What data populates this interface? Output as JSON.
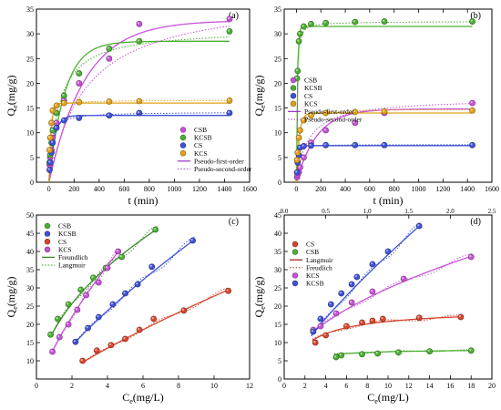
{
  "figure": {
    "background": "#ffffff"
  },
  "chart_data": [
    {
      "panel": "(a)",
      "type": "scatter",
      "xlabel": "t (min)",
      "ylabel": "Qe(mg/g)",
      "xlim": [
        -100,
        1600
      ],
      "ylim": [
        0,
        35
      ],
      "xticks": [
        0,
        200,
        400,
        600,
        800,
        1000,
        1200,
        1400,
        1600
      ],
      "yticks": [
        0,
        5,
        10,
        15,
        20,
        25,
        30,
        35
      ],
      "legend_position": "bottom-right",
      "legend": [
        {
          "label": "CSB",
          "kind": "marker",
          "color": "#c653d6"
        },
        {
          "label": "KCSB",
          "kind": "marker",
          "color": "#4caf33"
        },
        {
          "label": "CS",
          "kind": "marker",
          "color": "#3f51d6"
        },
        {
          "label": "KCS",
          "kind": "marker",
          "color": "#e0a21a"
        },
        {
          "label": "Pseudo-first-order",
          "kind": "solid",
          "color": "#9b3fc4"
        },
        {
          "label": "Pseudo-second-order",
          "kind": "dotted",
          "color": "#9b3fc4"
        }
      ],
      "series": [
        {
          "name": "CSB",
          "color": "#c653d6",
          "x": [
            5,
            10,
            20,
            30,
            60,
            120,
            240,
            480,
            720,
            1440
          ],
          "y": [
            3.5,
            5,
            6.5,
            9,
            12,
            16.5,
            20,
            25,
            32,
            33
          ]
        },
        {
          "name": "KCSB",
          "color": "#4caf33",
          "x": [
            5,
            10,
            20,
            30,
            60,
            120,
            240,
            480,
            720,
            1440
          ],
          "y": [
            4,
            5.5,
            8,
            10.5,
            14,
            17.5,
            22,
            27,
            28.5,
            30.5
          ]
        },
        {
          "name": "CS",
          "color": "#3f51d6",
          "x": [
            5,
            10,
            20,
            30,
            60,
            120,
            240,
            480,
            720,
            1440
          ],
          "y": [
            2.5,
            4,
            6,
            8,
            11,
            12.5,
            13,
            13.5,
            14,
            14
          ]
        },
        {
          "name": "KCS",
          "color": "#e0a21a",
          "x": [
            5,
            10,
            20,
            30,
            60,
            120,
            240,
            480,
            720,
            1440
          ],
          "y": [
            6.5,
            9,
            12,
            14.5,
            15.5,
            16,
            16.2,
            16.3,
            16.4,
            16.5
          ]
        }
      ],
      "fits": [
        {
          "color": "#c653d6",
          "model": "pfo",
          "qe": 32.7,
          "k": 0.0035
        },
        {
          "color": "#4caf33",
          "model": "pfo",
          "qe": 28.5,
          "k": 0.008
        },
        {
          "color": "#3f51d6",
          "model": "pfo",
          "qe": 13.5,
          "k": 0.025
        },
        {
          "color": "#e0a21a",
          "model": "pfo",
          "qe": 16.0,
          "k": 0.06
        },
        {
          "color": "#c653d6",
          "model": "pso",
          "qe": 38,
          "k": 9e-05
        },
        {
          "color": "#4caf33",
          "model": "pso",
          "qe": 31,
          "k": 0.0004
        },
        {
          "color": "#3f51d6",
          "model": "pso",
          "qe": 14.2,
          "k": 0.004
        },
        {
          "color": "#e0a21a",
          "model": "pso",
          "qe": 16.6,
          "k": 0.009
        }
      ]
    },
    {
      "panel": "(b)",
      "type": "scatter",
      "xlabel": "t (min)",
      "ylabel": "Qe(mg/g)",
      "xlim": [
        -100,
        1600
      ],
      "ylim": [
        0,
        35
      ],
      "xticks": [
        0,
        200,
        400,
        600,
        800,
        1000,
        1200,
        1400,
        1600
      ],
      "yticks": [
        0,
        5,
        10,
        15,
        20,
        25,
        30,
        35
      ],
      "legend_position": "center-left",
      "legend": [
        {
          "label": "CSB",
          "kind": "marker",
          "color": "#c653d6"
        },
        {
          "label": "KCSB",
          "kind": "marker",
          "color": "#4caf33"
        },
        {
          "label": "CS",
          "kind": "marker",
          "color": "#3f51d6"
        },
        {
          "label": "KCS",
          "kind": "marker",
          "color": "#e0a21a"
        },
        {
          "label": "Pseudo-first-order",
          "kind": "solid",
          "color": "#9b3fc4"
        },
        {
          "label": "Pseudo-second-order",
          "kind": "dotted",
          "color": "#9b3fc4"
        }
      ],
      "series": [
        {
          "name": "CSB",
          "color": "#c653d6",
          "x": [
            5,
            10,
            20,
            30,
            60,
            120,
            240,
            480,
            720,
            1440
          ],
          "y": [
            1,
            1.5,
            2,
            3,
            5,
            8,
            10.5,
            12,
            14,
            16
          ]
        },
        {
          "name": "KCSB",
          "color": "#4caf33",
          "x": [
            5,
            10,
            20,
            30,
            60,
            120,
            240,
            480,
            720,
            1440
          ],
          "y": [
            21,
            22.5,
            28.5,
            30,
            31.5,
            32,
            32.2,
            32.4,
            32.5,
            32.5
          ]
        },
        {
          "name": "CS",
          "color": "#3f51d6",
          "x": [
            5,
            10,
            20,
            30,
            60,
            120,
            240,
            480,
            720,
            1440
          ],
          "y": [
            2,
            4,
            5.5,
            7,
            7.3,
            7.4,
            7.5,
            7.5,
            7.5,
            7.5
          ]
        },
        {
          "name": "KCS",
          "color": "#e0a21a",
          "x": [
            5,
            10,
            20,
            30,
            60,
            120,
            240,
            480,
            720,
            1440
          ],
          "y": [
            4.5,
            6,
            9,
            10.5,
            12.5,
            13.5,
            14,
            14.2,
            14.3,
            14.5
          ]
        }
      ],
      "fits": [
        {
          "color": "#c653d6",
          "model": "pfo",
          "qe": 14.8,
          "k": 0.006
        },
        {
          "color": "#4caf33",
          "model": "pfo",
          "qe": 31.5,
          "k": 0.12
        },
        {
          "color": "#3f51d6",
          "model": "pfo",
          "qe": 7.4,
          "k": 0.08
        },
        {
          "color": "#e0a21a",
          "model": "pfo",
          "qe": 14.0,
          "k": 0.045
        },
        {
          "color": "#c653d6",
          "model": "pso",
          "qe": 17,
          "k": 0.0006
        },
        {
          "color": "#4caf33",
          "model": "pso",
          "qe": 32.5,
          "k": 0.008
        },
        {
          "color": "#3f51d6",
          "model": "pso",
          "qe": 7.6,
          "k": 0.03
        },
        {
          "color": "#e0a21a",
          "model": "pso",
          "qe": 14.8,
          "k": 0.006
        }
      ]
    },
    {
      "panel": "(c)",
      "type": "scatter",
      "xlabel": "Ce(mg/L)",
      "ylabel": "Qe(mg/g)",
      "xlim": [
        0,
        12
      ],
      "ylim": [
        5,
        50
      ],
      "xticks": [
        0,
        2,
        4,
        6,
        8,
        10,
        12
      ],
      "yticks": [
        10,
        15,
        20,
        25,
        30,
        35,
        40,
        45,
        50
      ],
      "legend_position": "top-left",
      "legend": [
        {
          "label": "CSB",
          "kind": "marker",
          "color": "#4caf33"
        },
        {
          "label": "KCSB",
          "kind": "marker",
          "color": "#3f51d6"
        },
        {
          "label": "CS",
          "kind": "marker",
          "color": "#d9442f"
        },
        {
          "label": "KCS",
          "kind": "marker",
          "color": "#c653d6"
        },
        {
          "label": "Freundlich",
          "kind": "solid",
          "color": "#3a8a2a"
        },
        {
          "label": "Langmuir",
          "kind": "dotted",
          "color": "#3a8a2a"
        }
      ],
      "series": [
        {
          "name": "CSB",
          "color": "#4caf33",
          "x": [
            0.8,
            1.2,
            1.8,
            2.5,
            3.2,
            3.9,
            4.8,
            6.7
          ],
          "y": [
            17.2,
            21.5,
            25.5,
            29.5,
            32.8,
            35.5,
            38.5,
            46
          ]
        },
        {
          "name": "KCSB",
          "color": "#3f51d6",
          "x": [
            2.2,
            2.9,
            3.5,
            4.3,
            5.0,
            5.7,
            6.5,
            8.8
          ],
          "y": [
            15.2,
            19,
            22,
            25.5,
            28.5,
            31,
            35.8,
            43
          ]
        },
        {
          "name": "CS",
          "color": "#d9442f",
          "x": [
            2.6,
            3.4,
            4.2,
            5.0,
            5.8,
            6.6,
            8.3,
            10.8
          ],
          "y": [
            10,
            12.8,
            14.3,
            16,
            18.5,
            21.5,
            23.8,
            29.2
          ]
        },
        {
          "name": "KCS",
          "color": "#c653d6",
          "x": [
            0.9,
            1.3,
            1.8,
            2.3,
            2.8,
            3.5,
            4.0,
            4.6
          ],
          "y": [
            12.5,
            16.5,
            20,
            24,
            28,
            31.5,
            35.5,
            40
          ]
        }
      ],
      "fits": [
        {
          "color": "#3a8a2a",
          "model": "power",
          "x0": 0.8,
          "x1": 6.8,
          "a": 18.4,
          "n": 0.48
        },
        {
          "color": "#3f51d6",
          "model": "power",
          "x0": 2.2,
          "x1": 8.9,
          "a": 8.4,
          "n": 0.75
        },
        {
          "color": "#d9442f",
          "model": "power",
          "x0": 2.6,
          "x1": 10.8,
          "a": 4.5,
          "n": 0.79
        },
        {
          "color": "#c653d6",
          "model": "power",
          "x0": 0.9,
          "x1": 4.6,
          "a": 13.5,
          "n": 0.71
        }
      ]
    },
    {
      "panel": "(d)",
      "type": "scatter",
      "xlabel": "Ce(mg/L)",
      "ylabel": "Qe(mg/g)",
      "xlim": [
        0,
        20
      ],
      "ylim": [
        0,
        45
      ],
      "xticks": [
        0,
        2,
        4,
        6,
        8,
        10,
        12,
        14,
        16,
        18,
        20
      ],
      "yticks": [
        0,
        5,
        10,
        15,
        20,
        25,
        30,
        35,
        40,
        45
      ],
      "top_xlim": [
        0,
        2.5
      ],
      "top_xticks": [
        0.0,
        0.5,
        1.0,
        1.5,
        2.0,
        2.5
      ],
      "legend_position": "top-left",
      "legend": [
        {
          "label": "CS",
          "kind": "marker",
          "color": "#d9442f"
        },
        {
          "label": "CSB",
          "kind": "marker",
          "color": "#4caf33"
        },
        {
          "label": "Langmuir",
          "kind": "solid",
          "color": "#a0281e"
        },
        {
          "label": "Freudlich",
          "kind": "dotted",
          "color": "#a0281e"
        },
        {
          "label": "KCS",
          "kind": "marker",
          "color": "#c653d6"
        },
        {
          "label": "KCSB",
          "kind": "marker",
          "color": "#3f51d6"
        }
      ],
      "series": [
        {
          "name": "CS",
          "color": "#d9442f",
          "x": [
            3.0,
            4.0,
            6.0,
            7.5,
            8.5,
            9.5,
            13.0,
            17.0
          ],
          "y": [
            10,
            12,
            14.5,
            15.5,
            16,
            16.5,
            16.8,
            17
          ]
        },
        {
          "name": "CSB",
          "color": "#4caf33",
          "x": [
            5.0,
            5.5,
            7.5,
            9.0,
            11.0,
            14.0,
            18.0
          ],
          "y": [
            6,
            6.5,
            6.8,
            7,
            7.3,
            7.6,
            7.8
          ]
        },
        {
          "name": "KCS",
          "color": "#c653d6",
          "x": [
            2.8,
            3.5,
            5.0,
            6.5,
            8.5,
            11.5,
            18.0
          ],
          "y": [
            13.5,
            14.5,
            18,
            21,
            24,
            27.5,
            33.5
          ]
        },
        {
          "name": "KCSB",
          "color": "#3f51d6",
          "x": [
            2.8,
            3.5,
            4.5,
            5.5,
            6.5,
            7.0,
            8.5,
            10.0,
            13.0
          ],
          "y": [
            13,
            16.5,
            20.5,
            23.5,
            26,
            28,
            31.5,
            35,
            42
          ]
        }
      ],
      "fits": [
        {
          "color": "#d9442f",
          "model": "langmuir",
          "x0": 2.7,
          "x1": 17.3,
          "qm": 19.3,
          "kl": 0.45
        },
        {
          "color": "#4caf33",
          "model": "langmuir",
          "x0": 4.8,
          "x1": 18.3,
          "qm": 8.3,
          "kl": 0.9
        },
        {
          "color": "#c653d6",
          "model": "power",
          "x0": 2.6,
          "x1": 18.2,
          "a": 7.6,
          "n": 0.515
        },
        {
          "color": "#3f51d6",
          "model": "power",
          "x0": 2.6,
          "x1": 13.2,
          "a": 5.6,
          "n": 0.785
        }
      ]
    }
  ]
}
